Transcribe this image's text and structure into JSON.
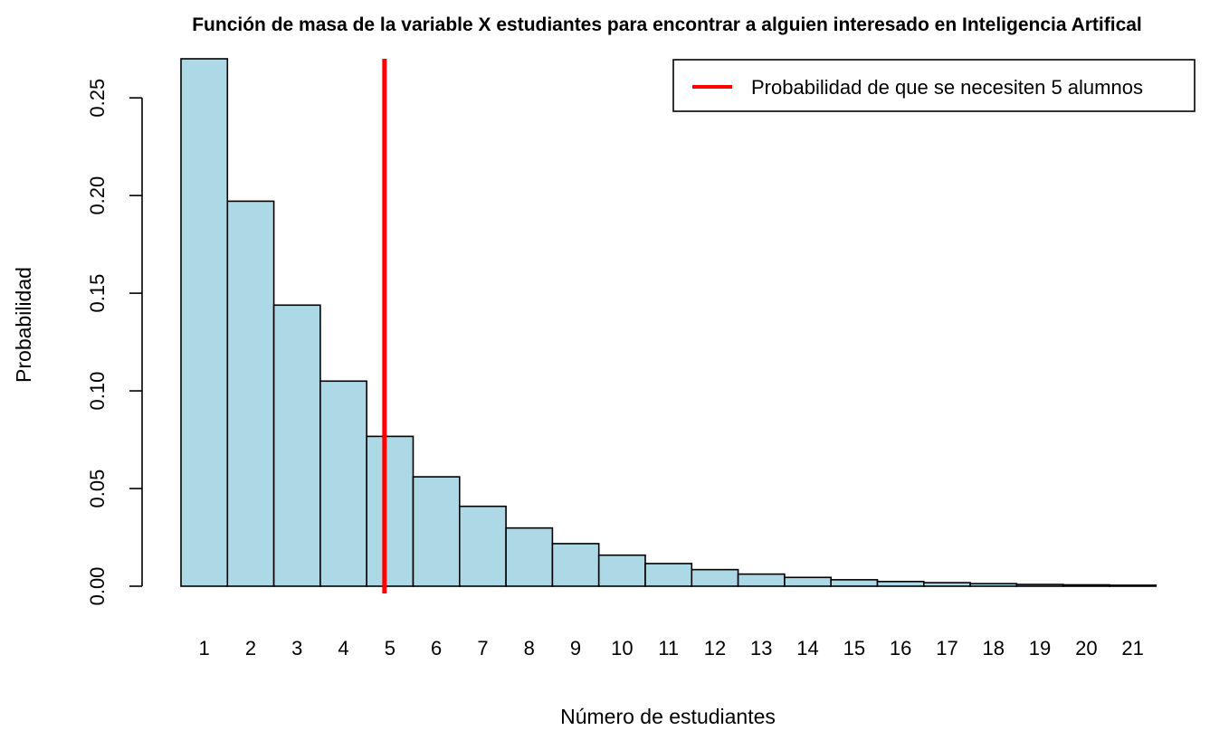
{
  "chart_data": {
    "type": "bar",
    "title": "Función de masa  de la variable X estudiantes para encontrar a alguien interesado en Inteligencia Artifical",
    "xlabel": "Número de estudiantes",
    "ylabel": "Probabilidad",
    "categories": [
      "1",
      "2",
      "3",
      "4",
      "5",
      "6",
      "7",
      "8",
      "9",
      "10",
      "11",
      "12",
      "13",
      "14",
      "15",
      "16",
      "17",
      "18",
      "19",
      "20",
      "21"
    ],
    "values": [
      0.27,
      0.1971,
      0.1439,
      0.105,
      0.0767,
      0.056,
      0.0409,
      0.0298,
      0.0218,
      0.0159,
      0.0116,
      0.0085,
      0.0062,
      0.0045,
      0.0033,
      0.0024,
      0.0018,
      0.0013,
      0.0009,
      0.0007,
      0.0005
    ],
    "ylim": [
      0,
      0.27
    ],
    "yticks": [
      0.0,
      0.05,
      0.1,
      0.15,
      0.2,
      0.25
    ],
    "ytick_labels": [
      "0.00",
      "0.05",
      "0.10",
      "0.15",
      "0.20",
      "0.25"
    ],
    "bar_color": "#add8e6",
    "bar_border_color": "#000000",
    "grid": false,
    "reference_line": {
      "orientation": "vertical",
      "x": 4.5,
      "color": "#ff0000",
      "label": "Probabilidad de que se necesiten 5 alumnos"
    },
    "legend": {
      "position": "top-right",
      "entries": [
        {
          "label": "Probabilidad de que se necesiten 5 alumnos",
          "color": "#ff0000",
          "kind": "line"
        }
      ]
    }
  }
}
